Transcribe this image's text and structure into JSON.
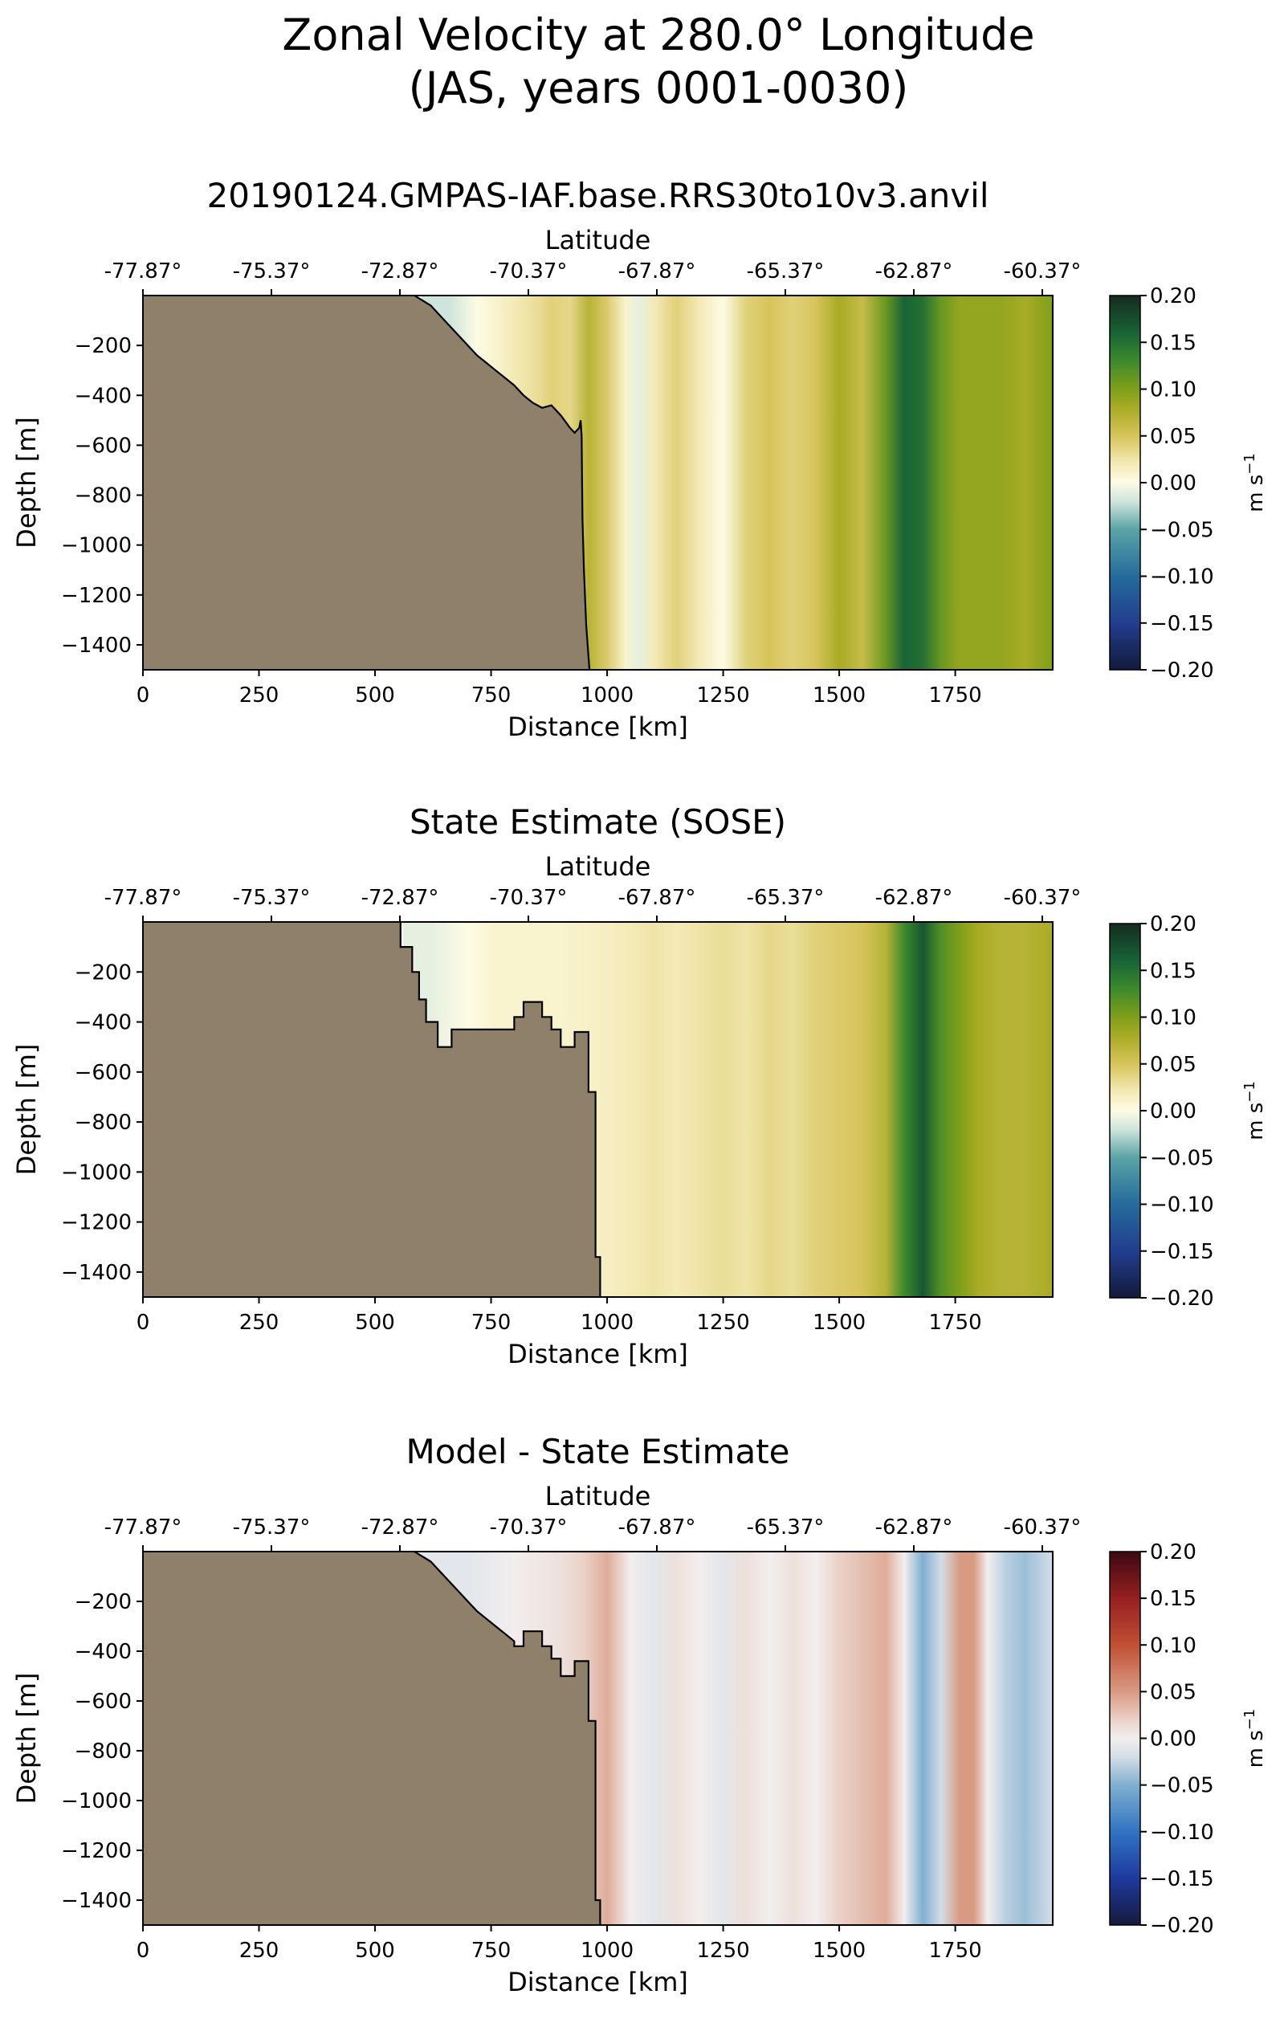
{
  "figure": {
    "title_line1": "Zonal Velocity at 280.0° Longitude",
    "title_line2": "(JAS, years 0001-0030)"
  },
  "chart_data": [
    {
      "type": "heatmap",
      "title": "20190124.GMPAS-IAF.base.RRS30to10v3.anvil",
      "xlabel": "Distance [km]",
      "ylabel": "Depth [m]",
      "top_xlabel": "Latitude",
      "xlim": [
        0,
        1960
      ],
      "ylim": [
        -1500,
        0
      ],
      "xticks": [
        0,
        250,
        500,
        750,
        1000,
        1250,
        1500,
        1750
      ],
      "yticks": [
        -200,
        -400,
        -600,
        -800,
        -1000,
        -1200,
        -1400
      ],
      "top_ticks": [
        "-77.87°",
        "-75.37°",
        "-72.87°",
        "-70.37°",
        "-67.87°",
        "-65.37°",
        "-62.87°",
        "-60.37°"
      ],
      "colorbar": {
        "label": "m s",
        "label_sup": "−1",
        "ticks": [
          "0.20",
          "0.15",
          "0.10",
          "0.05",
          "0.00",
          "−0.05",
          "−0.10",
          "−0.15",
          "−0.20"
        ],
        "vmin": -0.2,
        "vmax": 0.2,
        "cmap": "delta"
      },
      "land_color": "#8f806a",
      "velocity_profile": {
        "distance_km": [
          600,
          660,
          720,
          760,
          800,
          850,
          880,
          920,
          960,
          1000,
          1040,
          1070,
          1100,
          1150,
          1200,
          1250,
          1300,
          1350,
          1400,
          1450,
          1500,
          1550,
          1600,
          1640,
          1680,
          1720,
          1760,
          1800,
          1850,
          1900,
          1960
        ],
        "u_ms": [
          -0.02,
          -0.02,
          0.0,
          0.01,
          0.02,
          0.03,
          0.04,
          0.035,
          0.07,
          0.045,
          0.01,
          -0.01,
          0.02,
          0.04,
          0.02,
          0.0,
          0.04,
          0.05,
          0.04,
          0.05,
          0.08,
          0.06,
          0.11,
          0.16,
          0.15,
          0.11,
          0.09,
          0.09,
          0.09,
          0.08,
          0.1
        ]
      },
      "bathymetry": {
        "distance_km": [
          585,
          620,
          650,
          680,
          700,
          720,
          740,
          760,
          780,
          800,
          820,
          840,
          860,
          880,
          900,
          920,
          930,
          940,
          943,
          945,
          947,
          950,
          955,
          958,
          962
        ],
        "depth_m": [
          0,
          -40,
          -100,
          -160,
          -200,
          -240,
          -270,
          -300,
          -330,
          -360,
          -400,
          -430,
          -450,
          -440,
          -480,
          -530,
          -550,
          -530,
          -500,
          -560,
          -900,
          -1100,
          -1320,
          -1400,
          -1500
        ]
      }
    },
    {
      "type": "heatmap",
      "title": "State Estimate (SOSE)",
      "xlabel": "Distance [km]",
      "ylabel": "Depth [m]",
      "top_xlabel": "Latitude",
      "xlim": [
        0,
        1960
      ],
      "ylim": [
        -1500,
        0
      ],
      "xticks": [
        0,
        250,
        500,
        750,
        1000,
        1250,
        1500,
        1750
      ],
      "yticks": [
        -200,
        -400,
        -600,
        -800,
        -1000,
        -1200,
        -1400
      ],
      "top_ticks": [
        "-77.87°",
        "-75.37°",
        "-72.87°",
        "-70.37°",
        "-67.87°",
        "-65.37°",
        "-62.87°",
        "-60.37°"
      ],
      "colorbar": {
        "label": "m s",
        "label_sup": "−1",
        "ticks": [
          "0.20",
          "0.15",
          "0.10",
          "0.05",
          "0.00",
          "−0.05",
          "−0.10",
          "−0.15",
          "−0.20"
        ],
        "vmin": -0.2,
        "vmax": 0.2,
        "cmap": "delta"
      },
      "land_color": "#8f806a",
      "velocity_profile": {
        "distance_km": [
          560,
          620,
          700,
          760,
          800,
          900,
          1000,
          1050,
          1100,
          1150,
          1200,
          1250,
          1300,
          1350,
          1400,
          1450,
          1500,
          1550,
          1600,
          1640,
          1680,
          1720,
          1760,
          1800,
          1850,
          1900,
          1960
        ],
        "u_ms": [
          -0.01,
          -0.01,
          0.0,
          0.01,
          0.01,
          0.01,
          0.015,
          0.02,
          0.025,
          0.02,
          0.025,
          0.03,
          0.025,
          0.035,
          0.03,
          0.04,
          0.045,
          0.05,
          0.07,
          0.13,
          0.17,
          0.12,
          0.1,
          0.08,
          0.07,
          0.07,
          0.08
        ]
      },
      "bathymetry": {
        "distance_km": [
          555,
          555,
          580,
          580,
          595,
          595,
          610,
          610,
          635,
          635,
          665,
          665,
          800,
          800,
          820,
          820,
          860,
          860,
          880,
          880,
          900,
          900,
          930,
          930,
          960,
          960,
          975,
          975,
          985,
          985
        ],
        "depth_m": [
          0,
          -100,
          -100,
          -200,
          -200,
          -310,
          -310,
          -400,
          -400,
          -500,
          -500,
          -430,
          -430,
          -380,
          -380,
          -320,
          -320,
          -380,
          -380,
          -430,
          -430,
          -500,
          -500,
          -440,
          -440,
          -680,
          -680,
          -1340,
          -1340,
          -1500
        ]
      }
    },
    {
      "type": "heatmap",
      "title": "Model - State Estimate",
      "xlabel": "Distance [km]",
      "ylabel": "Depth [m]",
      "top_xlabel": "Latitude",
      "xlim": [
        0,
        1960
      ],
      "ylim": [
        -1500,
        0
      ],
      "xticks": [
        0,
        250,
        500,
        750,
        1000,
        1250,
        1500,
        1750
      ],
      "yticks": [
        -200,
        -400,
        -600,
        -800,
        -1000,
        -1200,
        -1400
      ],
      "top_ticks": [
        "-77.87°",
        "-75.37°",
        "-72.87°",
        "-70.37°",
        "-67.87°",
        "-65.37°",
        "-62.87°",
        "-60.37°"
      ],
      "colorbar": {
        "label": "m s",
        "label_sup": "−1",
        "ticks": [
          "0.20",
          "0.15",
          "0.10",
          "0.05",
          "0.00",
          "−0.05",
          "−0.10",
          "−0.15",
          "−0.20"
        ],
        "vmin": -0.2,
        "vmax": 0.2,
        "cmap": "balance"
      },
      "land_color": "#8f806a",
      "velocity_profile": {
        "distance_km": [
          600,
          700,
          800,
          900,
          950,
          1000,
          1050,
          1100,
          1150,
          1200,
          1250,
          1300,
          1350,
          1400,
          1450,
          1500,
          1550,
          1600,
          1640,
          1680,
          1720,
          1760,
          1790,
          1820,
          1860,
          1900,
          1960
        ],
        "u_ms": [
          -0.01,
          -0.01,
          0.0,
          0.01,
          0.02,
          0.04,
          0.0,
          -0.01,
          0.01,
          0.0,
          -0.01,
          0.01,
          0.0,
          0.01,
          0.0,
          0.02,
          0.03,
          0.04,
          0.0,
          -0.05,
          -0.02,
          0.05,
          0.05,
          0.0,
          -0.03,
          -0.04,
          -0.02
        ]
      },
      "bathymetry": {
        "distance_km": [
          585,
          620,
          650,
          680,
          700,
          720,
          740,
          760,
          780,
          800,
          800,
          820,
          820,
          860,
          860,
          880,
          880,
          900,
          900,
          930,
          930,
          960,
          960,
          975,
          975,
          985,
          985
        ],
        "depth_m": [
          0,
          -40,
          -100,
          -160,
          -200,
          -240,
          -270,
          -300,
          -330,
          -360,
          -380,
          -380,
          -320,
          -320,
          -380,
          -380,
          -430,
          -430,
          -500,
          -500,
          -440,
          -440,
          -680,
          -680,
          -1400,
          -1400,
          -1500
        ]
      }
    }
  ]
}
